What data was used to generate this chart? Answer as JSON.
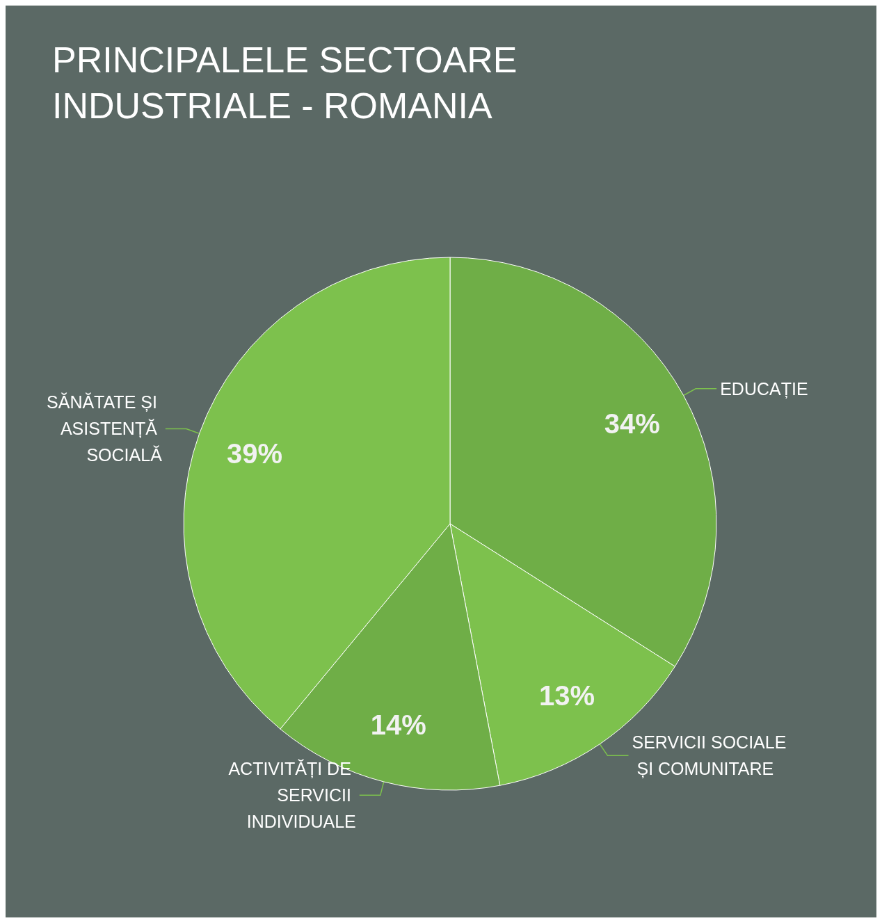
{
  "chart_data": {
    "type": "pie",
    "title": "PRINCIPALELE SECTOARE INDUSTRIALE - ROMANIA",
    "categories": [
      "EDUCAȚIE",
      "SERVICII SOCIALE ȘI COMUNITARE",
      "ACTIVITĂȚI DE SERVICII INDIVIDUALE",
      "SĂNĂTATE ȘI ASISTENȚĂ SOCIALĂ"
    ],
    "values": [
      34,
      13,
      14,
      39
    ],
    "colors": [
      "#6fae47",
      "#7dc14d",
      "#6fae47",
      "#7dc14d"
    ],
    "value_labels": [
      "34%",
      "13%",
      "14%",
      "39%"
    ],
    "legend": false
  }
}
